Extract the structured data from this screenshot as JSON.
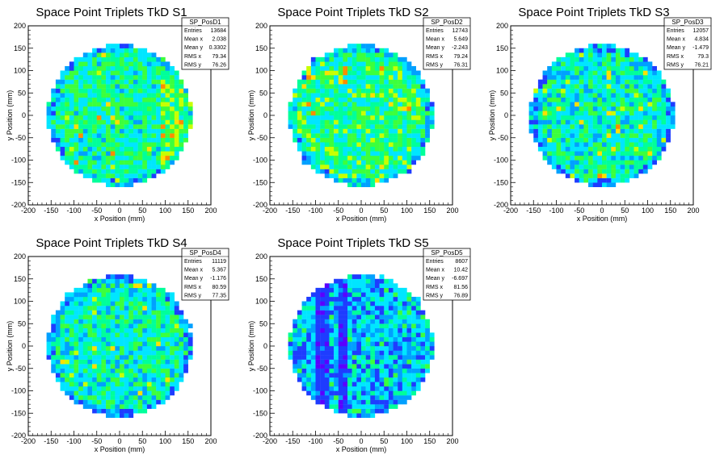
{
  "chart_data": [
    {
      "type": "heatmap",
      "title": "Space Point Triplets TkD S1",
      "xlabel": "x Position (mm)",
      "ylabel": "y Position (mm)",
      "xlim": [
        -200,
        200
      ],
      "ylim": [
        -200,
        200
      ],
      "xticks": [
        "-200",
        "-150",
        "-100",
        "-50",
        "0",
        "50",
        "100",
        "150",
        "200"
      ],
      "yticks": [
        "-200",
        "-150",
        "-100",
        "-50",
        "0",
        "50",
        "100",
        "150",
        "200"
      ],
      "stats": {
        "name": "SP_PosD1",
        "rows": [
          [
            "Entries",
            "13684"
          ],
          [
            "Mean x",
            "2.038"
          ],
          [
            "Mean y",
            "0.3302"
          ],
          [
            "RMS x",
            "79.34"
          ],
          [
            "RMS y",
            "76.26"
          ]
        ]
      },
      "detector_radius": 160,
      "bin_size": 10,
      "pattern": "uniform-hot-right"
    },
    {
      "type": "heatmap",
      "title": "Space Point Triplets TkD S2",
      "xlabel": "x Position (mm)",
      "ylabel": "y Position (mm)",
      "xlim": [
        -200,
        200
      ],
      "ylim": [
        -200,
        200
      ],
      "xticks": [
        "-200",
        "-150",
        "-100",
        "-50",
        "0",
        "50",
        "100",
        "150",
        "200"
      ],
      "yticks": [
        "-200",
        "-150",
        "-100",
        "-50",
        "0",
        "50",
        "100",
        "150",
        "200"
      ],
      "stats": {
        "name": "SP_PosD2",
        "rows": [
          [
            "Entries",
            "12743"
          ],
          [
            "Mean x",
            "5.649"
          ],
          [
            "Mean y",
            "-2.243"
          ],
          [
            "RMS x",
            "79.24"
          ],
          [
            "RMS y",
            "76.31"
          ]
        ]
      },
      "detector_radius": 160,
      "bin_size": 10,
      "pattern": "uniform-warm"
    },
    {
      "type": "heatmap",
      "title": "Space Point Triplets TkD S3",
      "xlabel": "x Position (mm)",
      "ylabel": "y Position (mm)",
      "xlim": [
        -200,
        200
      ],
      "ylim": [
        -200,
        200
      ],
      "xticks": [
        "-200",
        "-150",
        "-100",
        "-50",
        "0",
        "50",
        "100",
        "150",
        "200"
      ],
      "yticks": [
        "-200",
        "-150",
        "-100",
        "-50",
        "0",
        "50",
        "100",
        "150",
        "200"
      ],
      "stats": {
        "name": "SP_PosD3",
        "rows": [
          [
            "Entries",
            "12057"
          ],
          [
            "Mean x",
            "4.834"
          ],
          [
            "Mean y",
            "-1.479"
          ],
          [
            "RMS x",
            "79.3"
          ],
          [
            "RMS y",
            "76.21"
          ]
        ]
      },
      "detector_radius": 160,
      "bin_size": 10,
      "pattern": "uniform-cool"
    },
    {
      "type": "heatmap",
      "title": "Space Point Triplets TkD S4",
      "xlabel": "x Position (mm)",
      "ylabel": "y Position (mm)",
      "xlim": [
        -200,
        200
      ],
      "ylim": [
        -200,
        200
      ],
      "xticks": [
        "-200",
        "-150",
        "-100",
        "-50",
        "0",
        "50",
        "100",
        "150",
        "200"
      ],
      "yticks": [
        "-200",
        "-150",
        "-100",
        "-50",
        "0",
        "50",
        "100",
        "150",
        "200"
      ],
      "stats": {
        "name": "SP_PosD4",
        "rows": [
          [
            "Entries",
            "11119"
          ],
          [
            "Mean x",
            "5.367"
          ],
          [
            "Mean y",
            "-1.176"
          ],
          [
            "RMS x",
            "80.59"
          ],
          [
            "RMS y",
            "77.35"
          ]
        ]
      },
      "detector_radius": 160,
      "bin_size": 10,
      "pattern": "uniform-cool"
    },
    {
      "type": "heatmap",
      "title": "Space Point Triplets TkD S5",
      "xlabel": "x Position (mm)",
      "ylabel": "y Position (mm)",
      "xlim": [
        -200,
        200
      ],
      "ylim": [
        -200,
        200
      ],
      "xticks": [
        "-200",
        "-150",
        "-100",
        "-50",
        "0",
        "50",
        "100",
        "150",
        "200"
      ],
      "yticks": [
        "-200",
        "-150",
        "-100",
        "-50",
        "0",
        "50",
        "100",
        "150",
        "200"
      ],
      "stats": {
        "name": "SP_PosD5",
        "rows": [
          [
            "Entries",
            "8607"
          ],
          [
            "Mean x",
            "10.42"
          ],
          [
            "Mean y",
            "-6.697"
          ],
          [
            "RMS x",
            "81.56"
          ],
          [
            "RMS y",
            "76.89"
          ]
        ]
      },
      "detector_radius": 160,
      "bin_size": 10,
      "pattern": "dead-bands",
      "dead_x_bands": [
        [
          -100,
          -70
        ],
        [
          -50,
          -30
        ]
      ]
    }
  ],
  "colors": {
    "palette": [
      "#5a00ff",
      "#1e3cff",
      "#00a0ff",
      "#00e6ff",
      "#00ff9a",
      "#3cff3c",
      "#c8ff00",
      "#ffe000",
      "#ff8c00",
      "#ff2000",
      "#a00000"
    ],
    "frame": "#000000",
    "background": "#ffffff"
  }
}
